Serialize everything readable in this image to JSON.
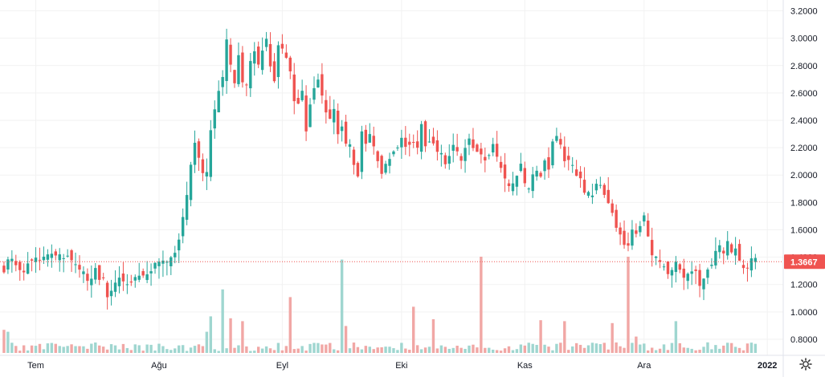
{
  "chart_data": {
    "type": "candlestick",
    "price_axis": {
      "ticks": [
        0.8,
        1.0,
        1.2,
        1.4,
        1.6,
        1.8,
        2.0,
        2.2,
        2.4,
        2.6,
        2.8,
        3.0,
        3.2
      ],
      "tick_labels": [
        "0.8000",
        "1.0000",
        "1.2000",
        "1.4000",
        "1.6000",
        "1.8000",
        "2.0000",
        "2.2000",
        "2.4000",
        "2.6000",
        "2.8000",
        "3.0000",
        "3.2000"
      ],
      "range": [
        0.7,
        3.25
      ]
    },
    "time_axis": {
      "labels": [
        {
          "label": "Tem",
          "day": 9
        },
        {
          "label": "Ağu",
          "day": 40
        },
        {
          "label": "Eyl",
          "day": 71
        },
        {
          "label": "Eki",
          "day": 101
        },
        {
          "label": "Kas",
          "day": 132
        },
        {
          "label": "Ara",
          "day": 162
        },
        {
          "label": "2022",
          "day": 193
        }
      ],
      "range_days": [
        0,
        197
      ]
    },
    "last_price": {
      "label": "1.3667",
      "value": 1.3667
    },
    "colors": {
      "up": "#26a69a",
      "down": "#ef5350",
      "up_volume": "#9fd6d0",
      "down_volume": "#f1a7a5",
      "grid": "#f2f2f2",
      "last_price": "#ef5350"
    },
    "grid": true,
    "anchors": [
      [
        1,
        1.28
      ],
      [
        2,
        1.4
      ],
      [
        4,
        1.34
      ],
      [
        6,
        1.3
      ],
      [
        8,
        1.38
      ],
      [
        10,
        1.37
      ],
      [
        12,
        1.42
      ],
      [
        14,
        1.44
      ],
      [
        16,
        1.42
      ],
      [
        18,
        1.38
      ],
      [
        20,
        1.3
      ],
      [
        22,
        1.24
      ],
      [
        24,
        1.3
      ],
      [
        26,
        1.22
      ],
      [
        27,
        1.12
      ],
      [
        28,
        1.18
      ],
      [
        30,
        1.26
      ],
      [
        32,
        1.2
      ],
      [
        34,
        1.28
      ],
      [
        36,
        1.26
      ],
      [
        38,
        1.32
      ],
      [
        40,
        1.34
      ],
      [
        42,
        1.38
      ],
      [
        44,
        1.44
      ],
      [
        45,
        1.52
      ],
      [
        46,
        1.7
      ],
      [
        47,
        1.88
      ],
      [
        48,
        2.1
      ],
      [
        49,
        2.25
      ],
      [
        50,
        2.1
      ],
      [
        51,
        2.0
      ],
      [
        52,
        2.05
      ],
      [
        53,
        2.3
      ],
      [
        54,
        2.5
      ],
      [
        55,
        2.62
      ],
      [
        56,
        2.7
      ],
      [
        57,
        3.0
      ],
      [
        58,
        2.8
      ],
      [
        59,
        2.7
      ],
      [
        60,
        2.88
      ],
      [
        61,
        2.7
      ],
      [
        62,
        2.66
      ],
      [
        63,
        2.82
      ],
      [
        64,
        2.88
      ],
      [
        65,
        2.8
      ],
      [
        66,
        2.9
      ],
      [
        67,
        2.98
      ],
      [
        68,
        2.82
      ],
      [
        69,
        2.7
      ],
      [
        70,
        2.96
      ],
      [
        71,
        2.9
      ],
      [
        72,
        2.85
      ],
      [
        73,
        2.75
      ],
      [
        74,
        2.55
      ],
      [
        75,
        2.5
      ],
      [
        76,
        2.6
      ],
      [
        77,
        2.3
      ],
      [
        78,
        2.5
      ],
      [
        79,
        2.62
      ],
      [
        80,
        2.7
      ],
      [
        81,
        2.56
      ],
      [
        82,
        2.45
      ],
      [
        83,
        2.42
      ],
      [
        84,
        2.5
      ],
      [
        85,
        2.3
      ],
      [
        86,
        2.35
      ],
      [
        87,
        2.25
      ],
      [
        88,
        2.2
      ],
      [
        89,
        2.1
      ],
      [
        90,
        2.0
      ],
      [
        91,
        2.3
      ],
      [
        92,
        2.2
      ],
      [
        93,
        2.28
      ],
      [
        94,
        2.2
      ],
      [
        95,
        2.1
      ],
      [
        96,
        2.02
      ],
      [
        97,
        2.08
      ],
      [
        98,
        2.1
      ],
      [
        99,
        2.15
      ],
      [
        100,
        2.2
      ],
      [
        101,
        2.25
      ],
      [
        102,
        2.2
      ],
      [
        104,
        2.22
      ],
      [
        105,
        2.18
      ],
      [
        106,
        2.38
      ],
      [
        107,
        2.2
      ],
      [
        108,
        2.26
      ],
      [
        110,
        2.18
      ],
      [
        112,
        2.1
      ],
      [
        114,
        2.2
      ],
      [
        116,
        2.12
      ],
      [
        118,
        2.28
      ],
      [
        120,
        2.15
      ],
      [
        122,
        2.1
      ],
      [
        124,
        2.2
      ],
      [
        126,
        2.05
      ],
      [
        127,
        1.95
      ],
      [
        128,
        1.9
      ],
      [
        129,
        1.96
      ],
      [
        130,
        2.0
      ],
      [
        131,
        2.1
      ],
      [
        132,
        1.95
      ],
      [
        133,
        1.9
      ],
      [
        134,
        1.98
      ],
      [
        135,
        2.05
      ],
      [
        136,
        2.0
      ],
      [
        137,
        2.1
      ],
      [
        138,
        2.02
      ],
      [
        139,
        2.25
      ],
      [
        140,
        2.3
      ],
      [
        141,
        2.2
      ],
      [
        142,
        2.08
      ],
      [
        143,
        2.12
      ],
      [
        144,
        2.05
      ],
      [
        145,
        1.98
      ],
      [
        146,
        1.95
      ],
      [
        147,
        1.9
      ],
      [
        148,
        1.85
      ],
      [
        149,
        1.88
      ],
      [
        150,
        1.95
      ],
      [
        151,
        1.92
      ],
      [
        152,
        1.85
      ],
      [
        153,
        1.78
      ],
      [
        154,
        1.7
      ],
      [
        155,
        1.62
      ],
      [
        156,
        1.55
      ],
      [
        157,
        1.5
      ],
      [
        158,
        1.48
      ],
      [
        159,
        1.58
      ],
      [
        160,
        1.55
      ],
      [
        161,
        1.62
      ],
      [
        162,
        1.7
      ],
      [
        163,
        1.55
      ],
      [
        164,
        1.42
      ],
      [
        165,
        1.38
      ],
      [
        166,
        1.36
      ],
      [
        167,
        1.32
      ],
      [
        168,
        1.28
      ],
      [
        169,
        1.32
      ],
      [
        170,
        1.36
      ],
      [
        171,
        1.28
      ],
      [
        172,
        1.22
      ],
      [
        173,
        1.3
      ],
      [
        174,
        1.32
      ],
      [
        175,
        1.28
      ],
      [
        176,
        1.22
      ],
      [
        177,
        1.26
      ],
      [
        178,
        1.3
      ],
      [
        179,
        1.34
      ],
      [
        180,
        1.45
      ],
      [
        181,
        1.48
      ],
      [
        182,
        1.4
      ],
      [
        183,
        1.5
      ],
      [
        184,
        1.42
      ],
      [
        185,
        1.48
      ],
      [
        186,
        1.38
      ],
      [
        187,
        1.34
      ],
      [
        188,
        1.32
      ],
      [
        189,
        1.4
      ],
      [
        190,
        1.3667
      ]
    ],
    "volume": {
      "seed": 11,
      "spikes": [
        {
          "day": 1,
          "rel": 0.24
        },
        {
          "day": 2,
          "rel": 0.22
        },
        {
          "day": 53,
          "rel": 0.38
        },
        {
          "day": 56,
          "rel": 0.66
        },
        {
          "day": 73,
          "rel": 0.58
        },
        {
          "day": 86,
          "rel": 0.97
        },
        {
          "day": 104,
          "rel": 0.48
        },
        {
          "day": 109,
          "rel": 0.35
        },
        {
          "day": 121,
          "rel": 1.0
        },
        {
          "day": 136,
          "rel": 0.34
        },
        {
          "day": 142,
          "rel": 0.33
        },
        {
          "day": 154,
          "rel": 0.31
        },
        {
          "day": 158,
          "rel": 1.0
        },
        {
          "day": 170,
          "rel": 0.33
        },
        {
          "day": 160,
          "rel": 0.17
        },
        {
          "day": 58,
          "rel": 0.36
        },
        {
          "day": 61,
          "rel": 0.33
        },
        {
          "day": 52,
          "rel": 0.22
        },
        {
          "day": 87,
          "rel": 0.28
        }
      ]
    }
  },
  "ui": {
    "settings_icon": "gear-icon"
  }
}
